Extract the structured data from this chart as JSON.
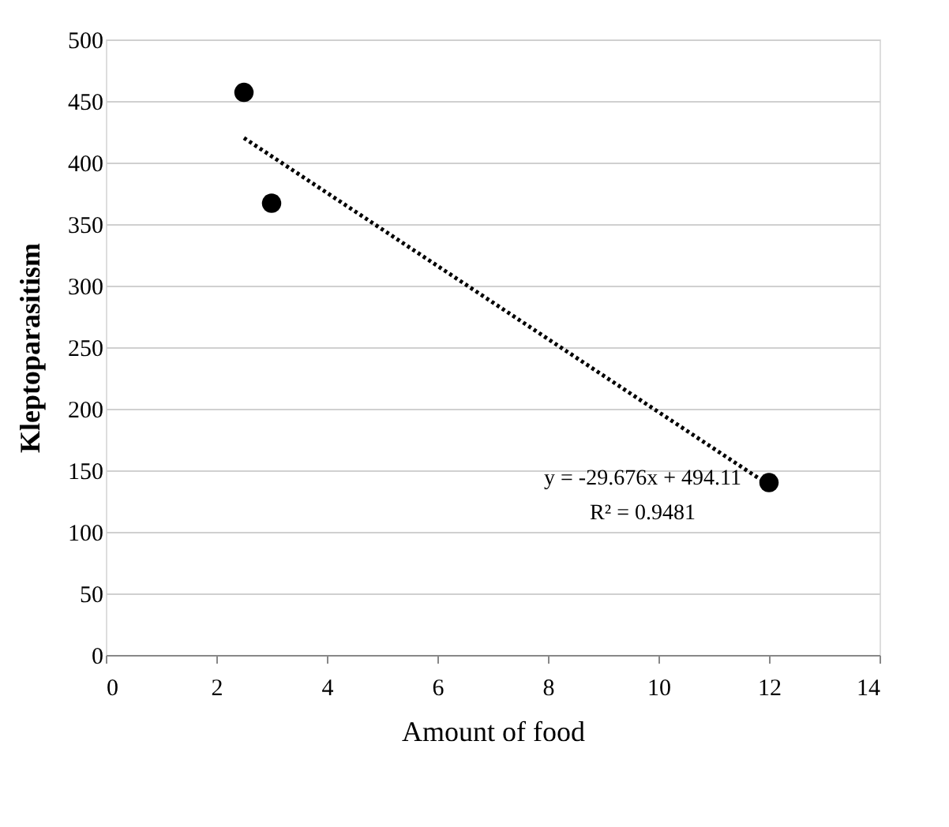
{
  "chart_data": {
    "type": "scatter",
    "xlabel": "Amount of food",
    "ylabel": "Kleptoparasitism",
    "x": [
      2.5,
      3,
      12
    ],
    "series": [
      {
        "color": "#000000",
        "marker": "circle",
        "values": [
          457,
          367,
          140
        ]
      },
      {
        "type": "line",
        "color": "#000000",
        "line_style": "dotted",
        "marker": "none",
        "x": [
          2.5,
          12
        ],
        "values": [
          420,
          138
        ]
      }
    ],
    "xlim": [
      0,
      14
    ],
    "xticks": [
      0,
      2,
      4,
      6,
      8,
      10,
      12,
      14
    ],
    "ylim": [
      0,
      500
    ],
    "yticks": [
      0,
      50,
      100,
      150,
      200,
      250,
      300,
      350,
      400,
      450,
      500
    ],
    "grid": "y",
    "annotations": [
      "y = -29.676x + 494.11",
      "R² = 0.9481"
    ]
  }
}
